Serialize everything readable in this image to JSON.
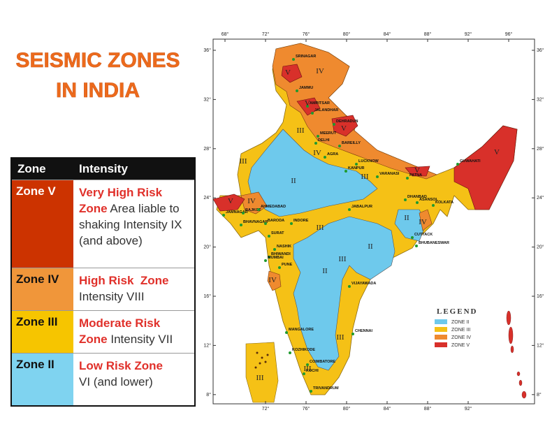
{
  "title": {
    "line1": "SEISMIC ZONES",
    "line2": "IN INDIA"
  },
  "table": {
    "header": [
      "Zone",
      "Intensity"
    ],
    "rows": [
      {
        "zone": "Zone V",
        "risk": "Very High Risk Zone",
        "description": "Area liable to shaking Intensity IX (and above)"
      },
      {
        "zone": "Zone IV",
        "risk": "High Risk  Zone",
        "description": "Intensity VIII"
      },
      {
        "zone": "Zone III",
        "risk": "Moderate Risk Zone",
        "description": "Intensity VII"
      },
      {
        "zone": "Zone II",
        "risk": "Low Risk Zone",
        "description": "VI (and lower)"
      }
    ]
  },
  "map": {
    "lon_ticks_top": [
      {
        "value": 68,
        "label": "68°"
      },
      {
        "value": 72,
        "label": "72°"
      },
      {
        "value": 76,
        "label": "76°"
      },
      {
        "value": 80,
        "label": "80°"
      },
      {
        "value": 84,
        "label": "84°"
      },
      {
        "value": 88,
        "label": "88°"
      },
      {
        "value": 92,
        "label": "92°"
      },
      {
        "value": 96,
        "label": "96°"
      }
    ],
    "lon_ticks_bottom": [
      {
        "value": 72,
        "label": "72°"
      },
      {
        "value": 76,
        "label": "76°"
      },
      {
        "value": 80,
        "label": "80°"
      },
      {
        "value": 84,
        "label": "84°"
      },
      {
        "value": 88,
        "label": "88°"
      },
      {
        "value": 92,
        "label": "92°"
      }
    ],
    "lat_ticks_left": [
      {
        "value": 36,
        "label": "36°"
      },
      {
        "value": 32,
        "label": "32°"
      },
      {
        "value": 28,
        "label": "28°"
      },
      {
        "value": 24,
        "label": "24°"
      },
      {
        "value": 20,
        "label": "20°"
      },
      {
        "value": 16,
        "label": "16°"
      },
      {
        "value": 12,
        "label": "12°"
      },
      {
        "value": 8,
        "label": "8°"
      }
    ],
    "lat_ticks_right": [
      {
        "value": 36,
        "label": "36°"
      },
      {
        "value": 32,
        "label": "32°"
      },
      {
        "value": 28,
        "label": "28°"
      },
      {
        "value": 24,
        "label": "24°"
      },
      {
        "value": 20,
        "label": "20°"
      },
      {
        "value": 16,
        "label": "16°"
      },
      {
        "value": 12,
        "label": "12°"
      },
      {
        "value": 8,
        "label": "8°"
      }
    ],
    "cities": [
      "SRINAGAR",
      "JAMMU",
      "AMRITSAR",
      "JALANDHAR",
      "DEHRADUN",
      "MEERUT",
      "DELHI",
      "BAREILLY",
      "AGRA",
      "LUCKNOW",
      "KANPUR",
      "VARANASI",
      "PATNA",
      "GUWAHATI",
      "DHANBAD",
      "ASANSOL",
      "KOLKATA",
      "JAMNAGAR",
      "RAJKOT",
      "AHMEDABAD",
      "BHAVNAGAR",
      "BARODA",
      "INDORE",
      "JABALPUR",
      "SURAT",
      "NASHIK",
      "BHIWANDI",
      "MUMBAI",
      "PUNE",
      "CUTTACK",
      "BHUBANESWAR",
      "VIJAYAWADA",
      "MANGALORE",
      "CHENNAI",
      "KOZHIKODE",
      "COIMBATORE",
      "KOCHI",
      "TRIVANDRUM"
    ],
    "zone_labels": [
      "V",
      "IV",
      "V",
      "III",
      "V",
      "IV",
      "III",
      "II",
      "III",
      "V",
      "V",
      "V",
      "IV",
      "III",
      "II",
      "IV",
      "II",
      "III",
      "II",
      "IV",
      "III",
      "III",
      "III"
    ],
    "legend": {
      "title": "LEGEND",
      "items": [
        "ZONE II",
        "ZONE III",
        "ZONE IV",
        "ZONE V"
      ]
    }
  }
}
